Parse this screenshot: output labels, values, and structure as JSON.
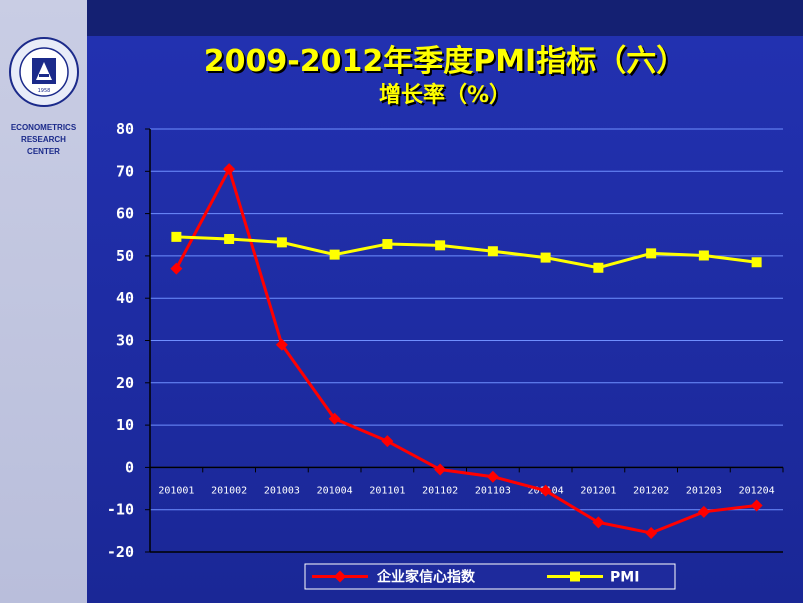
{
  "branding": {
    "center_label_lines": [
      "ECONOMETRICS",
      "RESEARCH",
      "CENTER"
    ],
    "logo_year": "1958"
  },
  "title": "2009-2012年季度PMI指标（六）",
  "subtitle": "增长率（%）",
  "colors": {
    "background": "#1e2a9c",
    "sidebar": "#c9cde4",
    "title": "#ffff00",
    "series_enterprise": "#ff0000",
    "series_pmi": "#ffff00",
    "grid": "#6f8fff",
    "axis": "#000000"
  },
  "chart_data": {
    "type": "line",
    "title": "2009-2012年季度PMI指标（六）",
    "subtitle": "增长率（%）",
    "xlabel": "",
    "ylabel": "",
    "categories": [
      "201001",
      "201002",
      "201003",
      "201004",
      "201101",
      "201102",
      "201103",
      "201104",
      "201201",
      "201202",
      "201203",
      "201204"
    ],
    "ylim": [
      -20,
      80
    ],
    "yticks": [
      80,
      70,
      60,
      50,
      40,
      30,
      20,
      10,
      0,
      -10,
      -20
    ],
    "grid": true,
    "legend_position": "bottom",
    "series": [
      {
        "name": "企业家信心指数",
        "color": "#ff0000",
        "marker": "diamond",
        "values": [
          47.0,
          70.5,
          29.0,
          11.5,
          6.2,
          -0.5,
          -2.2,
          -5.5,
          -13.0,
          -15.5,
          -10.5,
          -9.0
        ]
      },
      {
        "name": "PMI",
        "color": "#ffff00",
        "marker": "square",
        "values": [
          54.5,
          54.0,
          53.2,
          50.3,
          52.8,
          52.5,
          51.1,
          49.6,
          47.2,
          50.6,
          50.1,
          48.5
        ]
      }
    ]
  }
}
